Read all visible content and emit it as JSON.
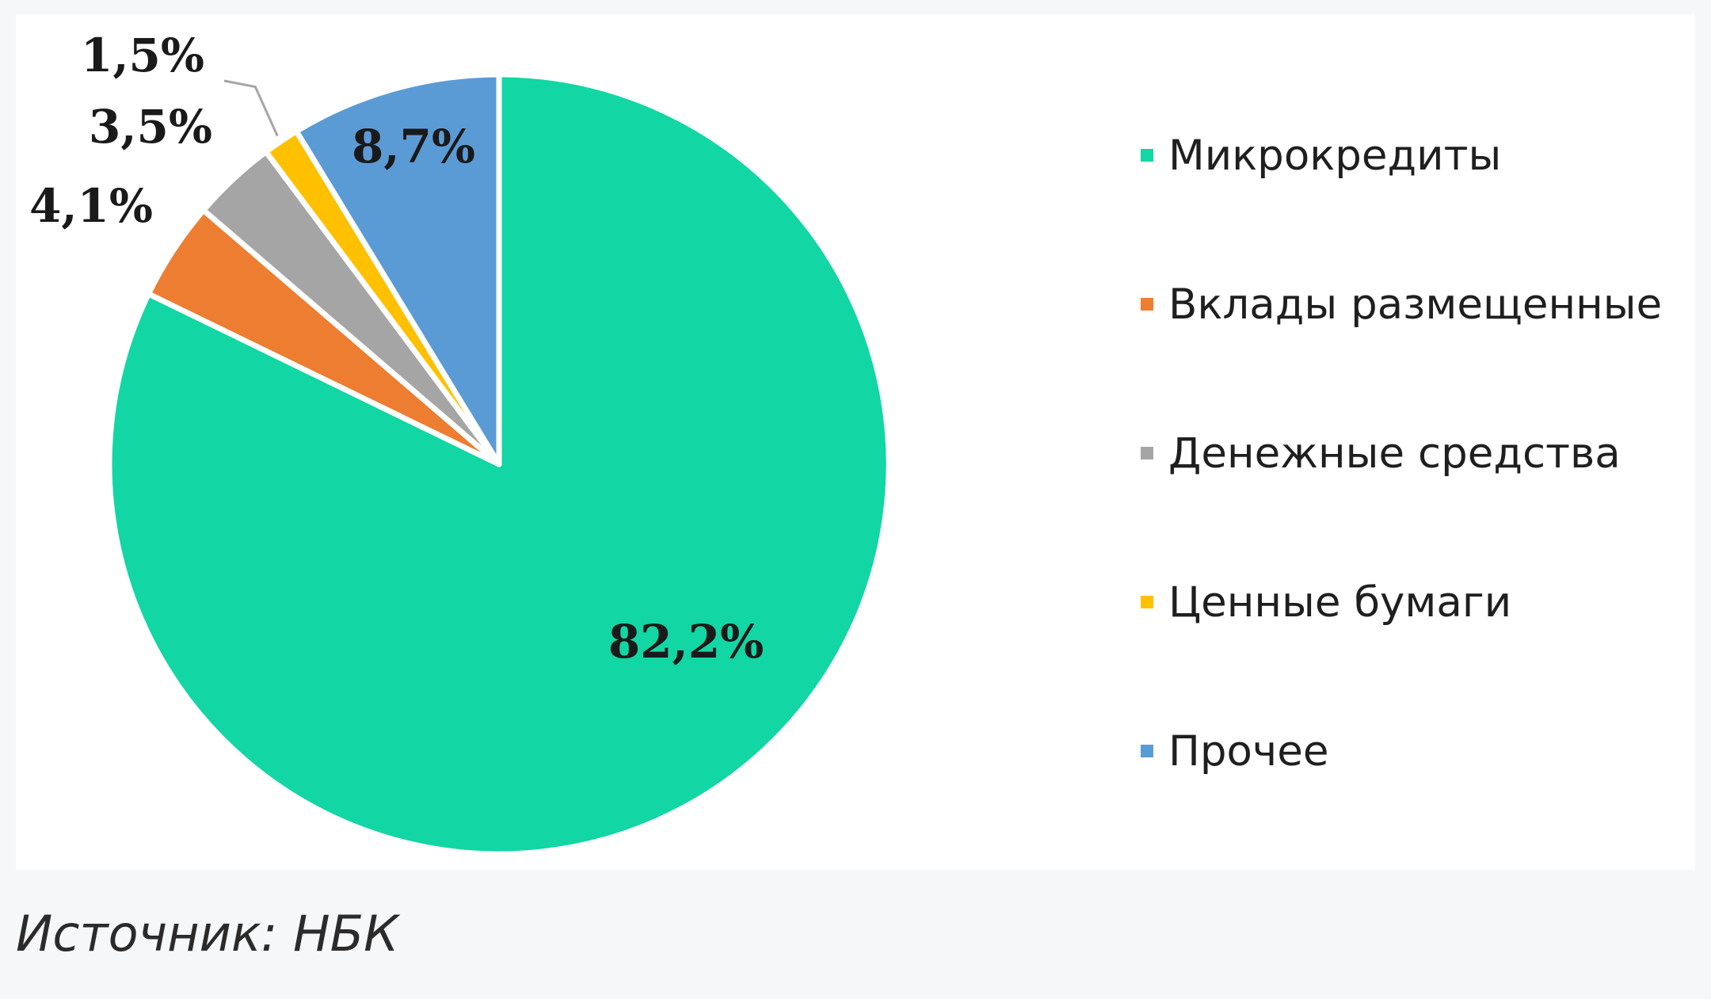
{
  "chart_data": {
    "type": "pie",
    "title": "",
    "start_angle_deg": 0,
    "direction": "clockwise",
    "slices": [
      {
        "name": "Микрокредиты",
        "value": 82.2,
        "label": "82,2%",
        "color": "#12d6a3"
      },
      {
        "name": "Вклады размещенные",
        "value": 4.1,
        "label": "4,1%",
        "color": "#ed7d31"
      },
      {
        "name": "Денежные средства",
        "value": 3.5,
        "label": "3,5%",
        "color": "#a5a5a5"
      },
      {
        "name": "Ценные бумаги",
        "value": 1.5,
        "label": "1,5%",
        "color": "#ffc000"
      },
      {
        "name": "Прочее",
        "value": 8.7,
        "label": "8,7%",
        "color": "#5b9bd5"
      }
    ],
    "legend_position": "right"
  },
  "source": "Источник: НБК"
}
